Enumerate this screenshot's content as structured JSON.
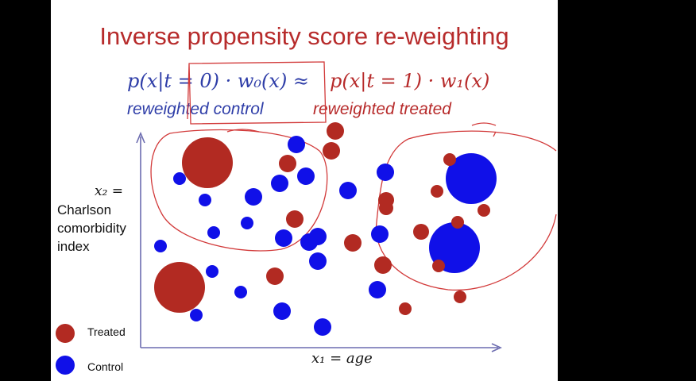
{
  "slide": {
    "title": "Inverse propensity score re-weighting",
    "formula_left": "p(x|t = 0) · w₀(x) ≈",
    "formula_right": "p(x|t = 1) · w₁(x)",
    "label_left": "reweighted control",
    "label_right": "reweighted treated",
    "y_axis_math": "x₂ =",
    "y_axis_text": "Charlson comorbidity index",
    "x_axis_math": "x₁ = age"
  },
  "legend": [
    {
      "label": "Treated",
      "color": "#b22a22"
    },
    {
      "label": "Control",
      "color": "#1010e8"
    }
  ],
  "colors": {
    "treated": "#b22a22",
    "control": "#1010e8",
    "axis": "#6c6cb0",
    "annotation": "#d23a3a"
  }
}
